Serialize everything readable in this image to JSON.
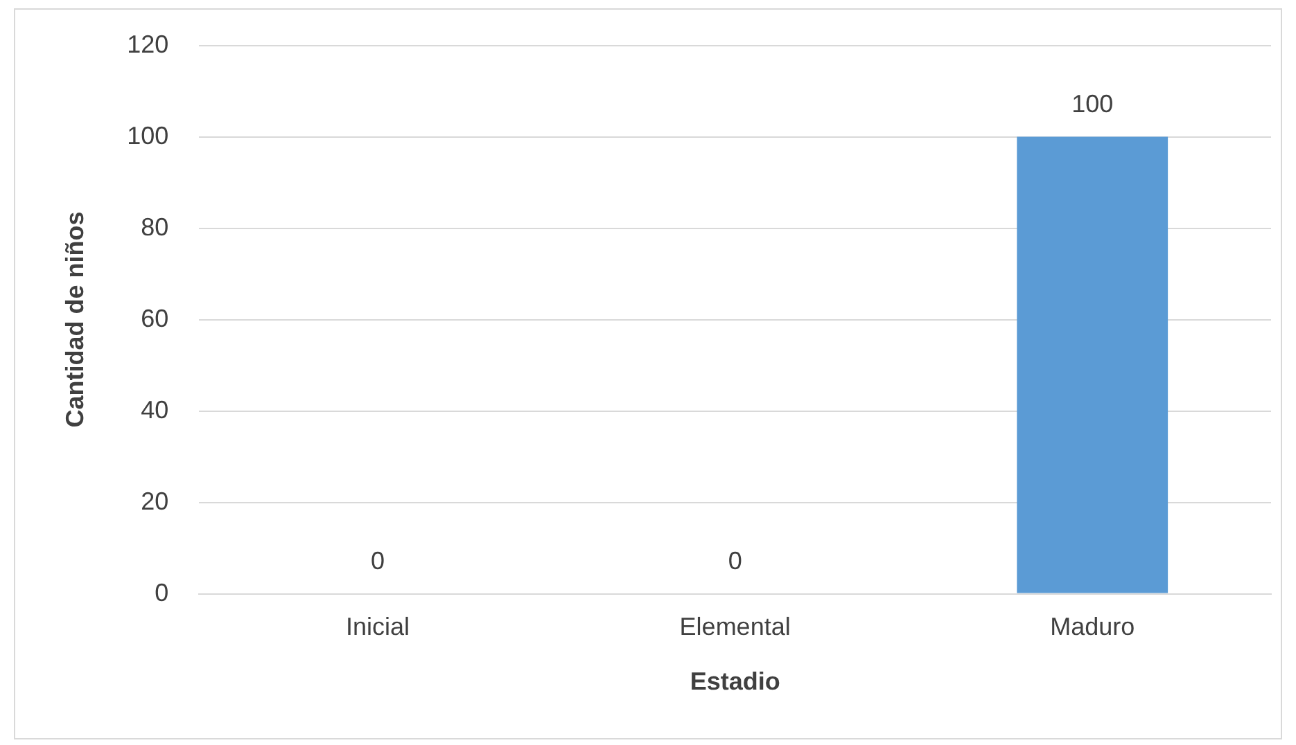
{
  "chart_data": {
    "type": "bar",
    "xlabel": "Estadio",
    "ylabel": "Cantidad de niños",
    "categories": [
      "Inicial",
      "Elemental",
      "Maduro"
    ],
    "values": [
      0,
      0,
      100
    ],
    "color": "#5b9bd5",
    "ylim": [
      0,
      120
    ],
    "yticks": [
      0,
      20,
      40,
      60,
      80,
      100,
      120
    ],
    "grid": "y",
    "data_labels": true,
    "legend": false
  }
}
